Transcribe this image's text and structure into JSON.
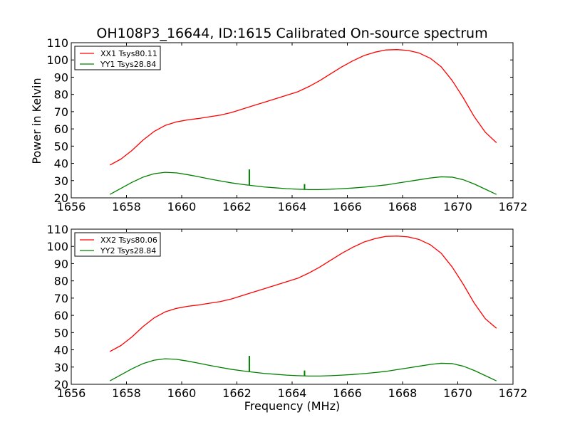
{
  "figure": {
    "title": "OH108P3_16644, ID:1615 Calibrated On-source spectrum",
    "xlabel": "Frequency (MHz)",
    "ylabel": "Power in Kelvin"
  },
  "chart_data": [
    {
      "type": "line",
      "title": "OH108P3_16644, ID:1615 Calibrated On-source spectrum",
      "xlabel": "",
      "ylabel": "Power in Kelvin",
      "xlim": [
        1656,
        1672
      ],
      "ylim": [
        20,
        110
      ],
      "xticks": [
        "1656",
        "1658",
        "1660",
        "1662",
        "1664",
        "1666",
        "1668",
        "1670",
        "1672"
      ],
      "yticks": [
        "20",
        "30",
        "40",
        "50",
        "60",
        "70",
        "80",
        "90",
        "100",
        "110"
      ],
      "legend_position": "top-left",
      "series": [
        {
          "name": "XX1 Tsys80.11",
          "color": "#ff0000",
          "x": [
            1657.4,
            1657.8,
            1658.2,
            1658.6,
            1659.0,
            1659.4,
            1659.8,
            1660.2,
            1660.6,
            1661.0,
            1661.4,
            1661.8,
            1662.2,
            1662.6,
            1663.0,
            1663.4,
            1663.8,
            1664.2,
            1664.6,
            1665.0,
            1665.4,
            1665.8,
            1666.2,
            1666.6,
            1667.0,
            1667.4,
            1667.8,
            1668.2,
            1668.6,
            1669.0,
            1669.4,
            1669.8,
            1670.2,
            1670.6,
            1671.0,
            1671.4
          ],
          "y": [
            39,
            42.5,
            47.5,
            53.5,
            58.5,
            62,
            64,
            65.2,
            66,
            67,
            68,
            69.5,
            71.5,
            73.5,
            75.5,
            77.5,
            79.5,
            81.5,
            84.5,
            88,
            92,
            96,
            99.5,
            102.5,
            104.5,
            105.8,
            106,
            105.5,
            104,
            101,
            96,
            88,
            78,
            67,
            58,
            52
          ]
        },
        {
          "name": "YY1 Tsys28.84",
          "color": "#008000",
          "x": [
            1657.4,
            1657.8,
            1658.2,
            1658.6,
            1659.0,
            1659.4,
            1659.8,
            1660.2,
            1660.6,
            1661.0,
            1661.4,
            1661.8,
            1662.2,
            1662.6,
            1663.0,
            1663.4,
            1663.8,
            1664.2,
            1664.6,
            1665.0,
            1665.4,
            1665.8,
            1666.2,
            1666.6,
            1667.0,
            1667.4,
            1667.8,
            1668.2,
            1668.6,
            1669.0,
            1669.4,
            1669.8,
            1670.2,
            1670.6,
            1671.0,
            1671.4
          ],
          "y": [
            22,
            25.5,
            29,
            32,
            34,
            34.8,
            34.5,
            33.5,
            32.3,
            31,
            29.8,
            28.7,
            27.8,
            27,
            26.3,
            25.8,
            25.3,
            25,
            24.8,
            24.8,
            25,
            25.3,
            25.7,
            26.2,
            26.8,
            27.5,
            28.5,
            29.5,
            30.5,
            31.5,
            32.2,
            32,
            30.5,
            28,
            25,
            22
          ],
          "spikes": [
            {
              "x": 1662.45,
              "y": 36.5
            },
            {
              "x": 1664.45,
              "y": 28
            }
          ]
        }
      ]
    },
    {
      "type": "line",
      "title": "",
      "xlabel": "Frequency (MHz)",
      "ylabel": "",
      "xlim": [
        1656,
        1672
      ],
      "ylim": [
        20,
        110
      ],
      "xticks": [
        "1656",
        "1658",
        "1660",
        "1662",
        "1664",
        "1666",
        "1668",
        "1670",
        "1672"
      ],
      "yticks": [
        "20",
        "30",
        "40",
        "50",
        "60",
        "70",
        "80",
        "90",
        "100",
        "110"
      ],
      "legend_position": "top-left",
      "series": [
        {
          "name": "XX2 Tsys80.06",
          "color": "#ff0000",
          "x": [
            1657.4,
            1657.8,
            1658.2,
            1658.6,
            1659.0,
            1659.4,
            1659.8,
            1660.2,
            1660.6,
            1661.0,
            1661.4,
            1661.8,
            1662.2,
            1662.6,
            1663.0,
            1663.4,
            1663.8,
            1664.2,
            1664.6,
            1665.0,
            1665.4,
            1665.8,
            1666.2,
            1666.6,
            1667.0,
            1667.4,
            1667.8,
            1668.2,
            1668.6,
            1669.0,
            1669.4,
            1669.8,
            1670.2,
            1670.6,
            1671.0,
            1671.4
          ],
          "y": [
            39,
            42.5,
            47.5,
            53.5,
            58.5,
            62,
            64,
            65.2,
            66,
            67,
            68,
            69.5,
            71.5,
            73.5,
            75.5,
            77.5,
            79.5,
            81.5,
            84.5,
            88,
            92,
            96,
            99.5,
            102.5,
            104.5,
            105.8,
            106,
            105.5,
            104,
            101,
            96,
            88,
            78,
            67,
            58,
            52.5
          ]
        },
        {
          "name": "YY2 Tsys28.84",
          "color": "#008000",
          "x": [
            1657.4,
            1657.8,
            1658.2,
            1658.6,
            1659.0,
            1659.4,
            1659.8,
            1660.2,
            1660.6,
            1661.0,
            1661.4,
            1661.8,
            1662.2,
            1662.6,
            1663.0,
            1663.4,
            1663.8,
            1664.2,
            1664.6,
            1665.0,
            1665.4,
            1665.8,
            1666.2,
            1666.6,
            1667.0,
            1667.4,
            1667.8,
            1668.2,
            1668.6,
            1669.0,
            1669.4,
            1669.8,
            1670.2,
            1670.6,
            1671.0,
            1671.4
          ],
          "y": [
            22,
            25.5,
            29,
            32,
            34,
            34.8,
            34.5,
            33.5,
            32.3,
            31,
            29.8,
            28.7,
            27.8,
            27,
            26.3,
            25.8,
            25.3,
            25,
            24.8,
            24.8,
            25,
            25.3,
            25.7,
            26.2,
            26.8,
            27.5,
            28.5,
            29.5,
            30.5,
            31.5,
            32.2,
            32,
            30.5,
            28,
            25,
            22
          ],
          "spikes": [
            {
              "x": 1662.45,
              "y": 36.5
            },
            {
              "x": 1664.45,
              "y": 28
            }
          ]
        }
      ]
    }
  ]
}
